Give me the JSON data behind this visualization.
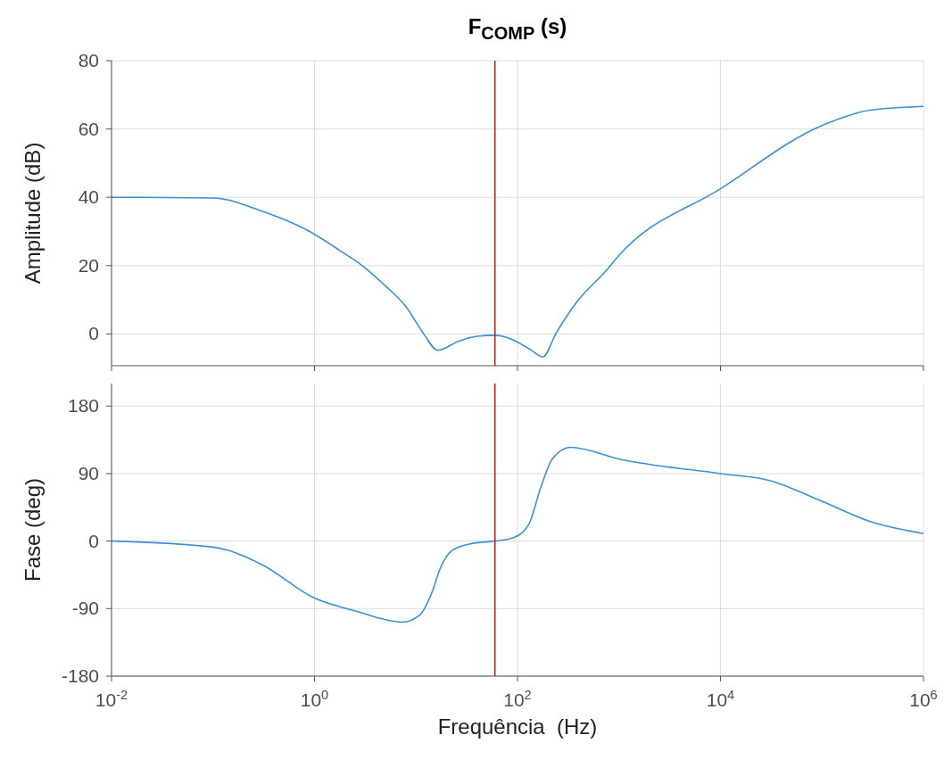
{
  "chart_data": [
    {
      "type": "line",
      "title": "F$_{COMP}$ (s)",
      "ylabel": "Amplitude (dB)",
      "log": "x",
      "grid": true,
      "tick_labels": "y",
      "x": [
        0.01,
        0.1,
        0.3,
        0.92,
        1.8,
        2.9,
        4.9,
        7.9,
        11.8,
        16.4,
        26,
        40,
        60,
        87,
        131,
        178,
        240,
        383,
        745,
        1000,
        10000,
        100000,
        300000,
        1000000
      ],
      "series": [
        {
          "color": "#3a8fd5",
          "values": [
            40,
            39.8,
            36,
            29.8,
            24.3,
            20.2,
            14.3,
            8.1,
            0.2,
            -4.8,
            -2.2,
            -0.7,
            -0.4,
            -1.5,
            -4.4,
            -6.7,
            0.2,
            9.3,
            18.5,
            23,
            42.5,
            61,
            65.5,
            66.6
          ]
        }
      ],
      "xlim": [
        0.01,
        1000000
      ],
      "ylim": [
        -9.3,
        80
      ],
      "yticks": [
        0,
        20,
        40,
        60,
        80
      ],
      "xticks": [
        {
          "value": 0.01,
          "label": null
        },
        {
          "value": 1,
          "label": null
        },
        {
          "value": 100,
          "label": null
        },
        {
          "value": 10000,
          "label": null
        },
        {
          "value": 1000000,
          "label": null
        }
      ],
      "ref_lines": [
        {
          "axis": "x",
          "value": 60,
          "color": "#b22222"
        }
      ]
    },
    {
      "type": "line",
      "xlabel": "Frequência  (Hz)",
      "ylabel": "Fase (deg)",
      "log": "x",
      "grid": true,
      "x": [
        0.01,
        0.1,
        0.3,
        1,
        2.5,
        7.3,
        11,
        14.4,
        17.5,
        23,
        36.5,
        60,
        93,
        130,
        171,
        222,
        334,
        1030,
        10000,
        30000,
        100000,
        300000,
        1000000
      ],
      "series": [
        {
          "color": "#3a8fd5",
          "values": [
            0,
            -8,
            -31,
            -76,
            -93,
            -108,
            -98,
            -68,
            -35,
            -12,
            -3,
            0,
            5,
            23,
            73,
            110,
            125,
            109,
            90,
            81,
            53,
            26,
            10
          ]
        }
      ],
      "xlim": [
        0.01,
        1000000
      ],
      "ylim": [
        -180,
        210
      ],
      "yticks": [
        -180,
        -90,
        0,
        90,
        180
      ],
      "xticks": [
        {
          "value": 0.01,
          "label": "10$^{-2}$"
        },
        {
          "value": 1,
          "label": "10$^{0}$"
        },
        {
          "value": 100,
          "label": "10$^{2}$"
        },
        {
          "value": 10000,
          "label": "10$^{4}$"
        },
        {
          "value": 1000000,
          "label": "10$^{6}$"
        }
      ],
      "ref_lines": [
        {
          "axis": "x",
          "value": 60,
          "color": "#b22222"
        }
      ]
    }
  ]
}
